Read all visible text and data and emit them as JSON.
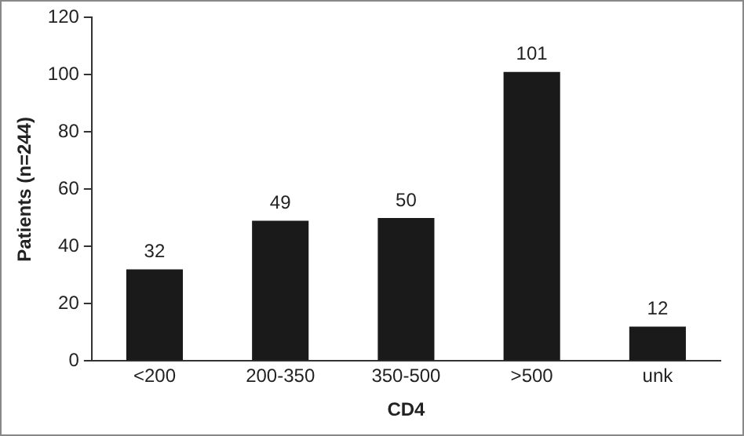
{
  "chart_data": {
    "type": "bar",
    "xlabel": "CD4",
    "ylabel": "Patients (n=244)",
    "categories": [
      "<200",
      "200-350",
      "350-500",
      ">500",
      "unk"
    ],
    "values": [
      32,
      49,
      50,
      101,
      12
    ],
    "color": "#1a1a1a",
    "ylim": [
      0,
      120
    ],
    "yticks": [
      0,
      20,
      40,
      60,
      80,
      100,
      120
    ],
    "grid": false,
    "legend": false,
    "data_labels": true
  }
}
